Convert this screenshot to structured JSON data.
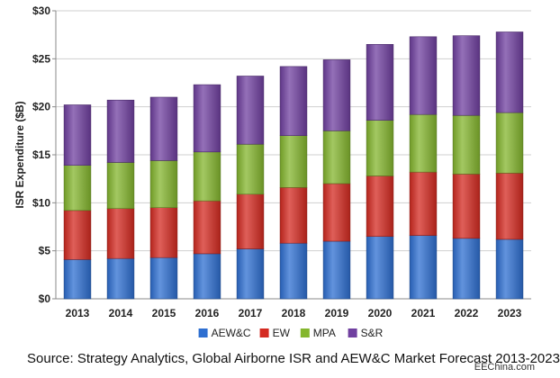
{
  "chart_data": {
    "type": "bar",
    "stacked": true,
    "categories": [
      "2013",
      "2014",
      "2015",
      "2016",
      "2017",
      "2018",
      "2019",
      "2020",
      "2021",
      "2022",
      "2023"
    ],
    "series": [
      {
        "name": "AEW&C",
        "color": "#2e6fd1",
        "values": [
          4.1,
          4.2,
          4.3,
          4.7,
          5.2,
          5.8,
          6.0,
          6.5,
          6.6,
          6.3,
          6.2
        ]
      },
      {
        "name": "EW",
        "color": "#d42a21",
        "values": [
          5.1,
          5.2,
          5.2,
          5.5,
          5.7,
          5.8,
          6.0,
          6.3,
          6.6,
          6.7,
          6.9
        ]
      },
      {
        "name": "MPA",
        "color": "#84b62e",
        "values": [
          4.7,
          4.8,
          4.9,
          5.1,
          5.2,
          5.4,
          5.5,
          5.8,
          6.0,
          6.1,
          6.3
        ]
      },
      {
        "name": "S&R",
        "color": "#7040a0",
        "values": [
          6.3,
          6.5,
          6.6,
          7.0,
          7.1,
          7.2,
          7.4,
          7.9,
          8.1,
          8.3,
          8.4
        ]
      }
    ],
    "ylabel": "ISR Expenditure ($B)",
    "ylim": [
      0,
      30
    ],
    "yticks": [
      "$0",
      "$5",
      "$10",
      "$15",
      "$20",
      "$25",
      "$30"
    ],
    "ytick_values": [
      0,
      5,
      10,
      15,
      20,
      25,
      30
    ],
    "grid": "horizontal",
    "legend_position": "bottom"
  },
  "source_text": "Source: Strategy Analytics, Global Airborne ISR and AEW&C Market Forecast 2013-2023",
  "watermark": "EEChina.com"
}
